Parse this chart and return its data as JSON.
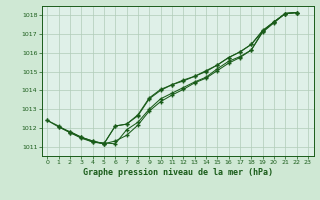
{
  "background_color": "#cfe8d4",
  "plot_bg_color": "#dff0e8",
  "grid_color": "#b0ccb8",
  "line_color": "#1a5c1a",
  "title": "Graphe pression niveau de la mer (hPa)",
  "xlim": [
    -0.5,
    23.5
  ],
  "ylim": [
    1010.5,
    1018.5
  ],
  "yticks": [
    1011,
    1012,
    1013,
    1014,
    1015,
    1016,
    1017,
    1018
  ],
  "xticks": [
    0,
    1,
    2,
    3,
    4,
    5,
    6,
    7,
    8,
    9,
    10,
    11,
    12,
    13,
    14,
    15,
    16,
    17,
    18,
    19,
    20,
    21,
    22,
    23
  ],
  "series": [
    {
      "x": [
        0,
        1,
        2,
        3,
        4,
        5,
        6,
        7,
        8,
        9,
        10,
        11,
        12,
        13,
        14,
        15,
        16,
        17,
        18,
        19,
        20,
        21,
        22
      ],
      "y": [
        1012.4,
        1012.1,
        1011.75,
        1011.5,
        1011.25,
        1011.2,
        1011.15,
        1011.9,
        1012.3,
        1013.0,
        1013.55,
        1013.85,
        1014.15,
        1014.45,
        1014.7,
        1015.15,
        1015.55,
        1015.8,
        1016.15,
        1017.15,
        1017.65,
        1018.1,
        1018.15
      ]
    },
    {
      "x": [
        0,
        1,
        2,
        3,
        4,
        5,
        6,
        7,
        8,
        9,
        10,
        11,
        12,
        13,
        14,
        15,
        16,
        17,
        18,
        19,
        20,
        21,
        22
      ],
      "y": [
        1012.4,
        1012.05,
        1011.75,
        1011.45,
        1011.25,
        1011.15,
        1011.3,
        1011.6,
        1012.15,
        1012.9,
        1013.4,
        1013.75,
        1014.05,
        1014.4,
        1014.65,
        1015.05,
        1015.45,
        1015.75,
        1016.15,
        1017.1,
        1017.6,
        1018.1,
        1018.15
      ]
    },
    {
      "x": [
        1,
        2,
        3,
        4,
        5,
        6,
        7,
        8,
        9,
        10,
        11,
        12,
        13,
        14,
        15,
        16,
        17,
        18,
        19,
        20,
        21,
        22
      ],
      "y": [
        1012.05,
        1011.8,
        1011.5,
        1011.3,
        1011.15,
        1012.1,
        1012.2,
        1012.7,
        1013.6,
        1014.05,
        1014.3,
        1014.55,
        1014.75,
        1015.05,
        1015.35,
        1015.75,
        1016.05,
        1016.45,
        1017.2,
        1017.65,
        1018.1,
        1018.15
      ]
    },
    {
      "x": [
        2,
        3,
        4,
        5,
        6,
        7,
        8,
        9,
        10,
        11,
        12,
        13,
        14,
        15,
        16,
        17,
        18,
        19,
        20,
        21,
        22
      ],
      "y": [
        1011.8,
        1011.5,
        1011.3,
        1011.15,
        1012.1,
        1012.2,
        1012.65,
        1013.55,
        1014.0,
        1014.3,
        1014.5,
        1014.75,
        1015.0,
        1015.35,
        1015.75,
        1016.05,
        1016.45,
        1017.15,
        1017.65,
        1018.1,
        1018.15
      ]
    }
  ]
}
